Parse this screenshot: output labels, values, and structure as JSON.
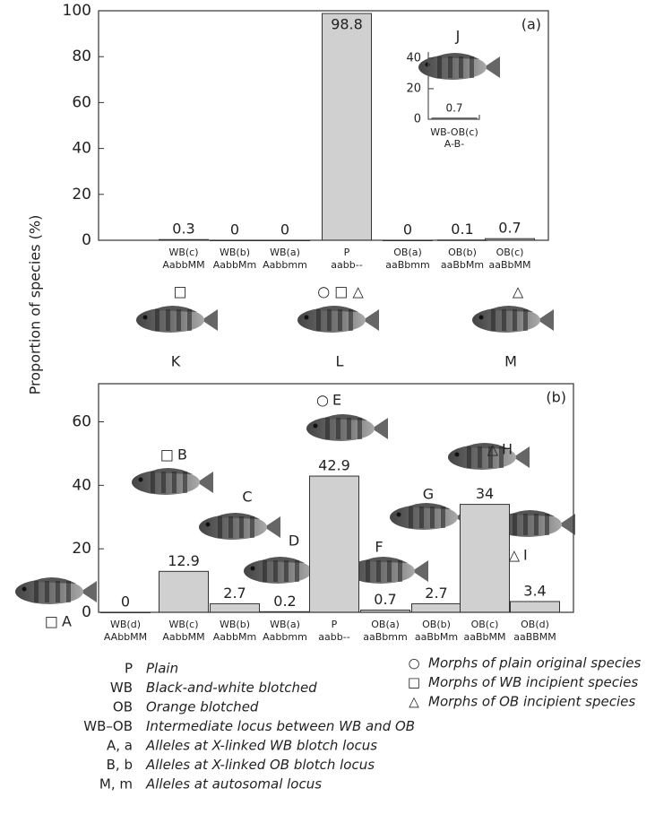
{
  "chart_data": [
    {
      "type": "bar",
      "panel": "(a)",
      "ylabel": "Proportion of species (%)",
      "categories": [
        "WB(c)",
        "WB(b)",
        "WB(a)",
        "P",
        "OB(a)",
        "OB(b)",
        "OB(c)"
      ],
      "genotypes": [
        "AabbMM",
        "AabbMm",
        "Aabbmm",
        "aabb--",
        "aaBbmm",
        "aaBbMm",
        "aaBbMM"
      ],
      "values": [
        0.3,
        0,
        0,
        98.8,
        0,
        0.1,
        0.7
      ],
      "color": "#d0d0d0",
      "ylim": [
        0,
        100
      ],
      "yticks": [
        0,
        20,
        40,
        60,
        80,
        100
      ]
    },
    {
      "type": "bar",
      "categories": [
        "WB-OB(c)"
      ],
      "genotypes": [
        "A-B-"
      ],
      "values": [
        0.7
      ],
      "color": "#d0d0d0",
      "ylim": [
        0,
        44
      ],
      "yticks": [
        0,
        20,
        40
      ]
    },
    {
      "type": "bar",
      "panel": "(b)",
      "categories": [
        "WB(d)",
        "WB(c)",
        "WB(b)",
        "WB(a)",
        "P",
        "OB(a)",
        "OB(b)",
        "OB(c)",
        "OB(d)"
      ],
      "genotypes": [
        "AAbbMM",
        "AabbMM",
        "AabbMm",
        "Aabbmm",
        "aabb--",
        "aaBbmm",
        "aaBbMm",
        "aaBbMM",
        "aaBBMM"
      ],
      "values": [
        0,
        12.9,
        2.7,
        0.2,
        42.9,
        0.7,
        2.7,
        34,
        3.4
      ],
      "color": "#d0d0d0",
      "ylim": [
        0,
        72
      ],
      "yticks": [
        0,
        20,
        40,
        60
      ]
    }
  ],
  "fish": [
    {
      "label": "J"
    },
    {
      "label": "K",
      "symbol": "□"
    },
    {
      "label": "L",
      "symbol": "○ □ △"
    },
    {
      "label": "M",
      "symbol": "△"
    },
    {
      "label": "A",
      "symbol": "□"
    },
    {
      "label": "B",
      "symbol": "□"
    },
    {
      "label": "C"
    },
    {
      "label": "D"
    },
    {
      "label": "E",
      "symbol": "○"
    },
    {
      "label": "F"
    },
    {
      "label": "G"
    },
    {
      "label": "H",
      "symbol": "△"
    },
    {
      "label": "I",
      "symbol": "△"
    }
  ],
  "legend": {
    "abbreviations": [
      {
        "abbr": "P",
        "text": "Plain"
      },
      {
        "abbr": "WB",
        "text": "Black-and-white blotched"
      },
      {
        "abbr": "OB",
        "text": "Orange blotched"
      },
      {
        "abbr": "WB–OB",
        "text": "Intermediate locus between WB and OB"
      },
      {
        "abbr": "A, a",
        "text": "Alleles at X-linked WB blotch locus"
      },
      {
        "abbr": "B, b",
        "text": "Alleles at X-linked OB blotch locus"
      },
      {
        "abbr": "M, m",
        "text": "Alleles at autosomal locus"
      }
    ],
    "symbols": [
      {
        "symbol": "○",
        "text": "Morphs of plain original species"
      },
      {
        "symbol": "□",
        "text": "Morphs of WB incipient species"
      },
      {
        "symbol": "△",
        "text": "Morphs of OB incipient species"
      }
    ]
  }
}
